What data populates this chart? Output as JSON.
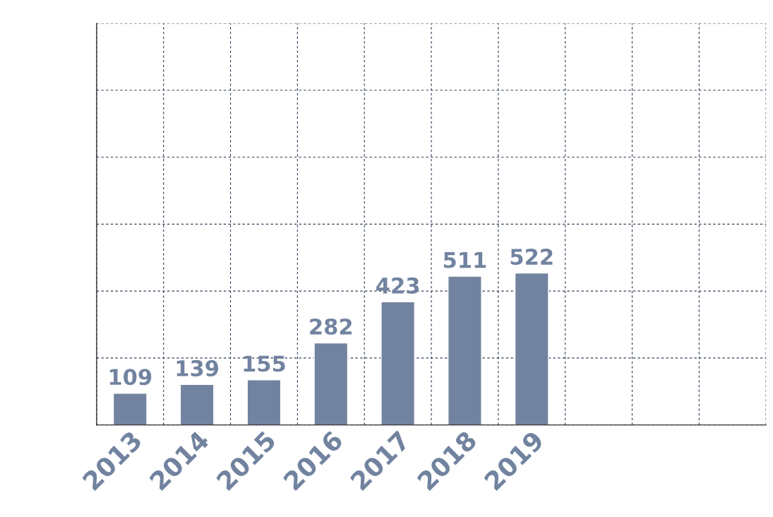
{
  "chart_data": {
    "type": "bar",
    "categories": [
      "2013",
      "2014",
      "2015",
      "2016",
      "2017",
      "2018",
      "2019",
      null,
      null,
      null
    ],
    "values": [
      109,
      139,
      155,
      282,
      423,
      511,
      522,
      null,
      null,
      null
    ],
    "color": "#71839f",
    "data_labels": true,
    "ylim": [
      0,
      1380
    ],
    "yticks": [
      {
        "value": 0,
        "label": null
      },
      {
        "value": 230,
        "label": null
      },
      {
        "value": 460,
        "label": null
      },
      {
        "value": 690,
        "label": null
      },
      {
        "value": 920,
        "label": null
      },
      {
        "value": 1150,
        "label": null
      },
      {
        "value": 1380,
        "label": null
      }
    ],
    "tick_labels": "x",
    "grid": true
  }
}
